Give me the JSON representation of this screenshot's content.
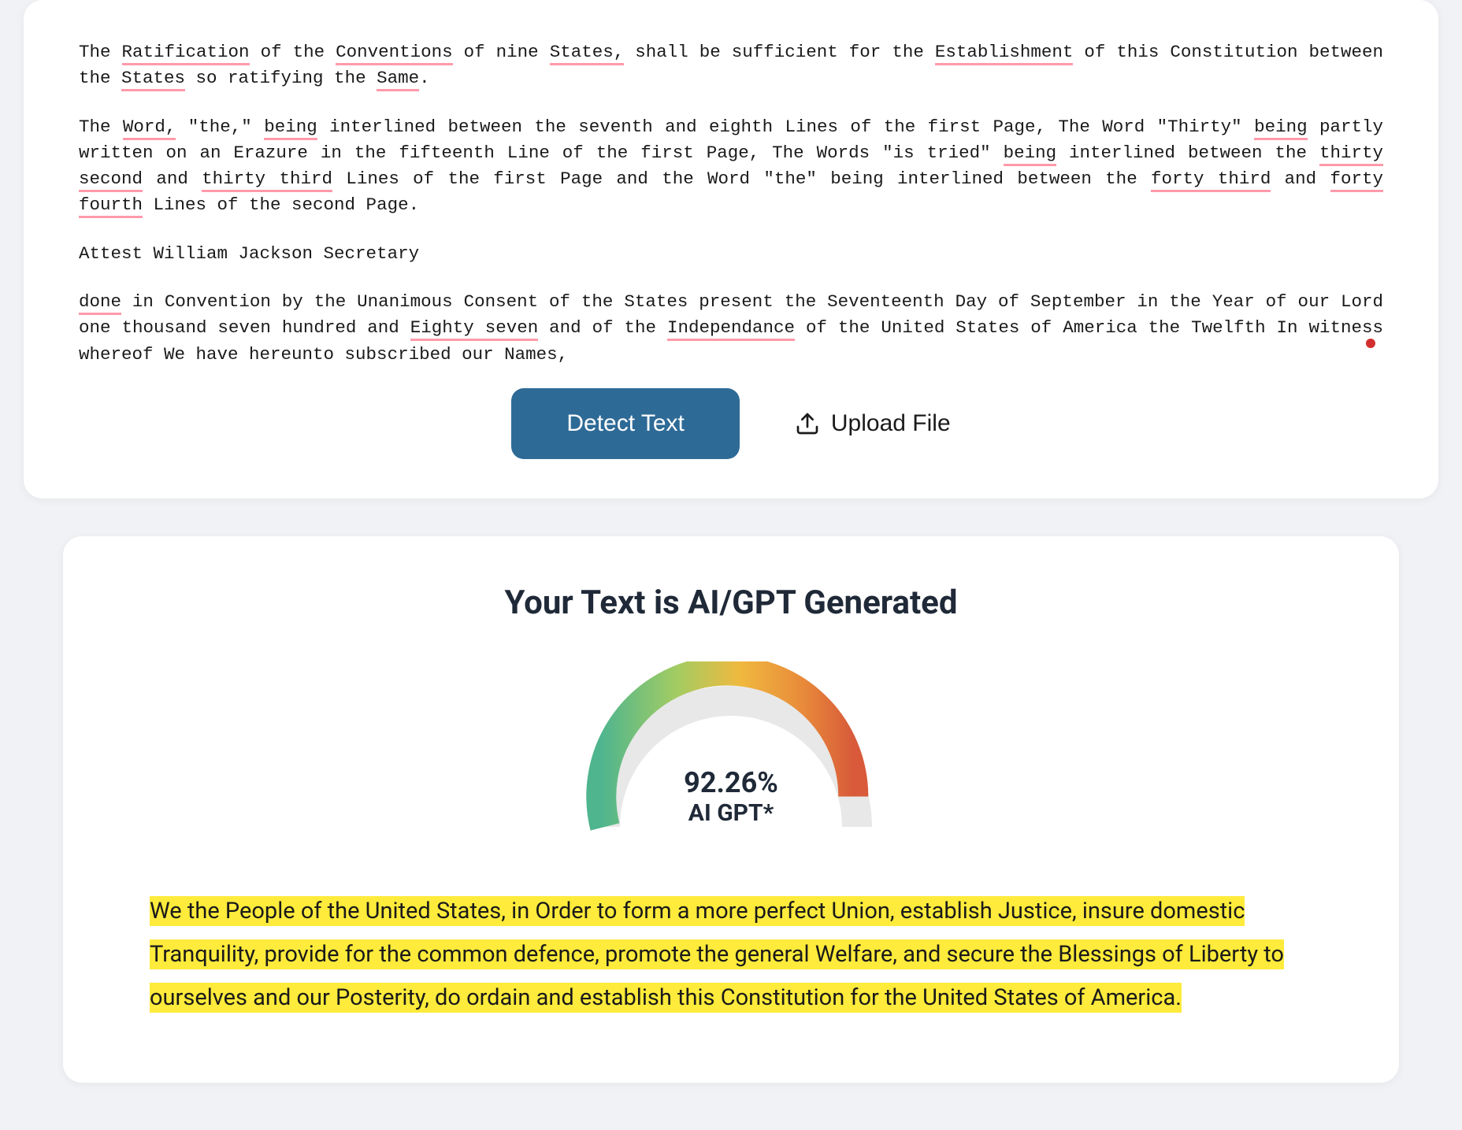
{
  "input_card": {
    "para1_parts": [
      {
        "t": "The ",
        "u": false
      },
      {
        "t": "Ratification",
        "u": true
      },
      {
        "t": " of the ",
        "u": false
      },
      {
        "t": "Conventions",
        "u": true
      },
      {
        "t": " of nine ",
        "u": false
      },
      {
        "t": "States,",
        "u": true
      },
      {
        "t": " shall be sufficient for the ",
        "u": false
      },
      {
        "t": "Establishment",
        "u": true
      },
      {
        "t": " of this Constitution between the ",
        "u": false
      },
      {
        "t": "States",
        "u": true
      },
      {
        "t": " so ratifying the ",
        "u": false
      },
      {
        "t": "Same",
        "u": true
      },
      {
        "t": ".",
        "u": false
      }
    ],
    "para2_parts": [
      {
        "t": "The ",
        "u": false
      },
      {
        "t": "Word,",
        "u": true
      },
      {
        "t": " \"the,\" ",
        "u": false
      },
      {
        "t": "being",
        "u": true
      },
      {
        "t": " interlined between the seventh and eighth Lines of the first Page, The Word \"Thirty\" ",
        "u": false
      },
      {
        "t": "being",
        "u": true
      },
      {
        "t": " partly written on an Erazure in the fifteenth Line of the first Page, The Words \"is tried\" ",
        "u": false
      },
      {
        "t": "being",
        "u": true
      },
      {
        "t": " interlined between the ",
        "u": false
      },
      {
        "t": "thirty second",
        "u": true
      },
      {
        "t": " and ",
        "u": false
      },
      {
        "t": "thirty third",
        "u": true
      },
      {
        "t": " Lines of the first Page and the Word \"the\" being interlined between the ",
        "u": false
      },
      {
        "t": "forty third",
        "u": true
      },
      {
        "t": " and ",
        "u": false
      },
      {
        "t": "forty fourth",
        "u": true
      },
      {
        "t": " Lines of the second Page.",
        "u": false
      }
    ],
    "para3": "Attest William Jackson Secretary",
    "para4_parts": [
      {
        "t": "done",
        "u": true
      },
      {
        "t": " in Convention by the Unanimous Consent of the States present the Seventeenth Day of September in the Year of our Lord one thousand seven hundred and ",
        "u": false
      },
      {
        "t": "Eighty seven",
        "u": true
      },
      {
        "t": " and of the ",
        "u": false
      },
      {
        "t": "Independance",
        "u": true
      },
      {
        "t": " of the United States of America the Twelfth In witness whereof We have hereunto subscribed our Names,",
        "u": false
      }
    ],
    "detect_button": "Detect Text",
    "upload_button": "Upload File"
  },
  "result_card": {
    "title": "Your Text is AI/GPT Generated",
    "gauge": {
      "percent_value": 92.26,
      "percent_label": "92.26%",
      "sub_label": "AI GPT*",
      "colors": {
        "start": "#4fb58e",
        "mid1": "#a3cc62",
        "mid2": "#f0b93f",
        "mid3": "#e88a3a",
        "end": "#d85a3a",
        "track": "#e8e8e8"
      },
      "stroke_width": 38
    },
    "highlighted": "We the People of the United States, in Order to form a more perfect Union, establish Justice, insure domestic Tranquility, provide for the common defence, promote the general Welfare, and secure the Blessings of Liberty to ourselves and our Posterity, do ordain and establish this Constitution for the United States of America."
  },
  "colors": {
    "page_bg": "#f0f2f5",
    "card_bg": "#ffffff",
    "detect_btn_bg": "#2e6a96",
    "detect_btn_fg": "#ffffff",
    "underline": "#ff9aaa",
    "highlight": "#ffeb3b",
    "text": "#1a1a1a",
    "red_dot": "#d32f2f"
  }
}
